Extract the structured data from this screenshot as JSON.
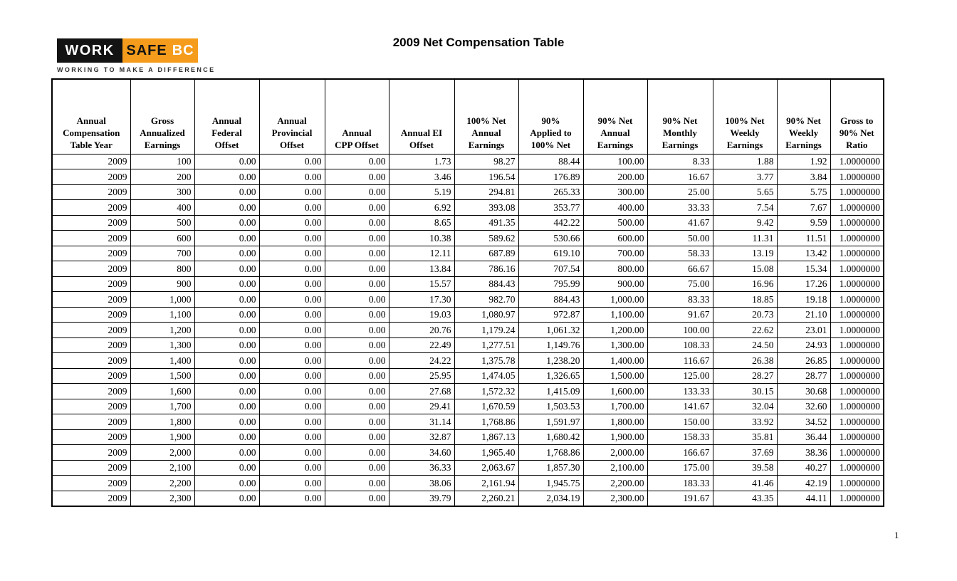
{
  "page": {
    "title": "2009 Net Compensation Table",
    "page_number": "1"
  },
  "logo": {
    "work": "WORK",
    "safe": "SAFE",
    "bc": "BC",
    "tagline": "WORKING TO MAKE A DIFFERENCE",
    "colors": {
      "box_black": "#131313",
      "box_orange": "#F59C1C"
    }
  },
  "table": {
    "columns": [
      "Annual\nCompensation\nTable Year",
      "Gross\nAnnualized\nEarnings",
      "Annual\nFederal\nOffset",
      "Annual\nProvincial\nOffset",
      "Annual\nCPP Offset",
      "Annual EI\nOffset",
      "100% Net\nAnnual\nEarnings",
      "90%\nApplied to\n100% Net",
      "90% Net\nAnnual\nEarnings",
      "90% Net\nMonthly\nEarnings",
      "100% Net\nWeekly\nEarnings",
      "90% Net\nWeekly\nEarnings",
      "Gross to\n90% Net\nRatio"
    ],
    "rows": [
      [
        "2009",
        "100",
        "0.00",
        "0.00",
        "0.00",
        "1.73",
        "98.27",
        "88.44",
        "100.00",
        "8.33",
        "1.88",
        "1.92",
        "1.0000000"
      ],
      [
        "2009",
        "200",
        "0.00",
        "0.00",
        "0.00",
        "3.46",
        "196.54",
        "176.89",
        "200.00",
        "16.67",
        "3.77",
        "3.84",
        "1.0000000"
      ],
      [
        "2009",
        "300",
        "0.00",
        "0.00",
        "0.00",
        "5.19",
        "294.81",
        "265.33",
        "300.00",
        "25.00",
        "5.65",
        "5.75",
        "1.0000000"
      ],
      [
        "2009",
        "400",
        "0.00",
        "0.00",
        "0.00",
        "6.92",
        "393.08",
        "353.77",
        "400.00",
        "33.33",
        "7.54",
        "7.67",
        "1.0000000"
      ],
      [
        "2009",
        "500",
        "0.00",
        "0.00",
        "0.00",
        "8.65",
        "491.35",
        "442.22",
        "500.00",
        "41.67",
        "9.42",
        "9.59",
        "1.0000000"
      ],
      [
        "2009",
        "600",
        "0.00",
        "0.00",
        "0.00",
        "10.38",
        "589.62",
        "530.66",
        "600.00",
        "50.00",
        "11.31",
        "11.51",
        "1.0000000"
      ],
      [
        "2009",
        "700",
        "0.00",
        "0.00",
        "0.00",
        "12.11",
        "687.89",
        "619.10",
        "700.00",
        "58.33",
        "13.19",
        "13.42",
        "1.0000000"
      ],
      [
        "2009",
        "800",
        "0.00",
        "0.00",
        "0.00",
        "13.84",
        "786.16",
        "707.54",
        "800.00",
        "66.67",
        "15.08",
        "15.34",
        "1.0000000"
      ],
      [
        "2009",
        "900",
        "0.00",
        "0.00",
        "0.00",
        "15.57",
        "884.43",
        "795.99",
        "900.00",
        "75.00",
        "16.96",
        "17.26",
        "1.0000000"
      ],
      [
        "2009",
        "1,000",
        "0.00",
        "0.00",
        "0.00",
        "17.30",
        "982.70",
        "884.43",
        "1,000.00",
        "83.33",
        "18.85",
        "19.18",
        "1.0000000"
      ],
      [
        "2009",
        "1,100",
        "0.00",
        "0.00",
        "0.00",
        "19.03",
        "1,080.97",
        "972.87",
        "1,100.00",
        "91.67",
        "20.73",
        "21.10",
        "1.0000000"
      ],
      [
        "2009",
        "1,200",
        "0.00",
        "0.00",
        "0.00",
        "20.76",
        "1,179.24",
        "1,061.32",
        "1,200.00",
        "100.00",
        "22.62",
        "23.01",
        "1.0000000"
      ],
      [
        "2009",
        "1,300",
        "0.00",
        "0.00",
        "0.00",
        "22.49",
        "1,277.51",
        "1,149.76",
        "1,300.00",
        "108.33",
        "24.50",
        "24.93",
        "1.0000000"
      ],
      [
        "2009",
        "1,400",
        "0.00",
        "0.00",
        "0.00",
        "24.22",
        "1,375.78",
        "1,238.20",
        "1,400.00",
        "116.67",
        "26.38",
        "26.85",
        "1.0000000"
      ],
      [
        "2009",
        "1,500",
        "0.00",
        "0.00",
        "0.00",
        "25.95",
        "1,474.05",
        "1,326.65",
        "1,500.00",
        "125.00",
        "28.27",
        "28.77",
        "1.0000000"
      ],
      [
        "2009",
        "1,600",
        "0.00",
        "0.00",
        "0.00",
        "27.68",
        "1,572.32",
        "1,415.09",
        "1,600.00",
        "133.33",
        "30.15",
        "30.68",
        "1.0000000"
      ],
      [
        "2009",
        "1,700",
        "0.00",
        "0.00",
        "0.00",
        "29.41",
        "1,670.59",
        "1,503.53",
        "1,700.00",
        "141.67",
        "32.04",
        "32.60",
        "1.0000000"
      ],
      [
        "2009",
        "1,800",
        "0.00",
        "0.00",
        "0.00",
        "31.14",
        "1,768.86",
        "1,591.97",
        "1,800.00",
        "150.00",
        "33.92",
        "34.52",
        "1.0000000"
      ],
      [
        "2009",
        "1,900",
        "0.00",
        "0.00",
        "0.00",
        "32.87",
        "1,867.13",
        "1,680.42",
        "1,900.00",
        "158.33",
        "35.81",
        "36.44",
        "1.0000000"
      ],
      [
        "2009",
        "2,000",
        "0.00",
        "0.00",
        "0.00",
        "34.60",
        "1,965.40",
        "1,768.86",
        "2,000.00",
        "166.67",
        "37.69",
        "38.36",
        "1.0000000"
      ],
      [
        "2009",
        "2,100",
        "0.00",
        "0.00",
        "0.00",
        "36.33",
        "2,063.67",
        "1,857.30",
        "2,100.00",
        "175.00",
        "39.58",
        "40.27",
        "1.0000000"
      ],
      [
        "2009",
        "2,200",
        "0.00",
        "0.00",
        "0.00",
        "38.06",
        "2,161.94",
        "1,945.75",
        "2,200.00",
        "183.33",
        "41.46",
        "42.19",
        "1.0000000"
      ],
      [
        "2009",
        "2,300",
        "0.00",
        "0.00",
        "0.00",
        "39.79",
        "2,260.21",
        "2,034.19",
        "2,300.00",
        "191.67",
        "43.35",
        "44.11",
        "1.0000000"
      ]
    ]
  }
}
